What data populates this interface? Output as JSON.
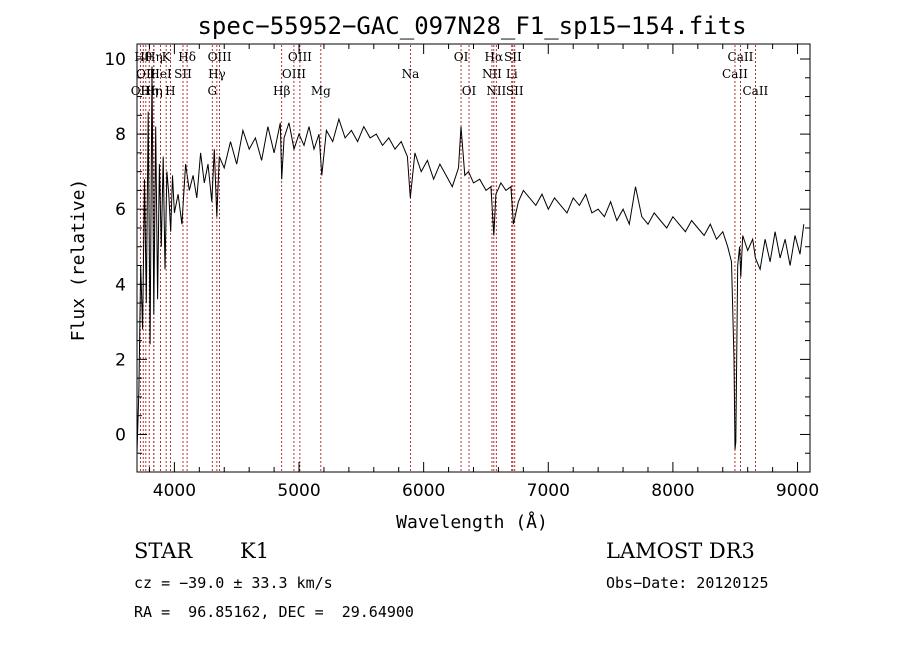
{
  "chart_data": {
    "type": "line",
    "title": "spec−55952−GAC_097N28_F1_sp15−154.fits",
    "xlabel": "Wavelength (Å)",
    "ylabel": "Flux (relative)",
    "xlim": [
      3700,
      9100
    ],
    "ylim": [
      -1.0,
      10.4
    ],
    "x_ticks": [
      {
        "v": 4000,
        "label": "4000"
      },
      {
        "v": 5000,
        "label": "5000"
      },
      {
        "v": 6000,
        "label": "6000"
      },
      {
        "v": 7000,
        "label": "7000"
      },
      {
        "v": 8000,
        "label": "8000"
      },
      {
        "v": 9000,
        "label": "9000"
      }
    ],
    "y_ticks": [
      {
        "v": 0,
        "label": "0"
      },
      {
        "v": 2,
        "label": "2"
      },
      {
        "v": 4,
        "label": "4"
      },
      {
        "v": 6,
        "label": "6"
      },
      {
        "v": 8,
        "label": "8"
      },
      {
        "v": 10,
        "label": "10"
      }
    ],
    "grid": false,
    "line_color": "#000000",
    "line_marker_color": "#a00000",
    "spectrum": {
      "x": [
        3700,
        3715,
        3730,
        3745,
        3760,
        3775,
        3790,
        3805,
        3820,
        3835,
        3850,
        3865,
        3880,
        3895,
        3910,
        3925,
        3940,
        3955,
        3970,
        3985,
        4000,
        4030,
        4060,
        4090,
        4120,
        4150,
        4180,
        4210,
        4240,
        4270,
        4300,
        4320,
        4340,
        4360,
        4400,
        4450,
        4500,
        4550,
        4600,
        4650,
        4700,
        4750,
        4800,
        4850,
        4861,
        4880,
        4920,
        4960,
        5000,
        5040,
        5080,
        5120,
        5160,
        5183,
        5220,
        5270,
        5320,
        5370,
        5420,
        5470,
        5520,
        5570,
        5620,
        5670,
        5720,
        5770,
        5820,
        5870,
        5893,
        5930,
        5980,
        6030,
        6080,
        6130,
        6180,
        6230,
        6280,
        6300,
        6330,
        6360,
        6400,
        6450,
        6500,
        6540,
        6563,
        6580,
        6620,
        6660,
        6700,
        6720,
        6760,
        6800,
        6850,
        6900,
        6950,
        7000,
        7050,
        7100,
        7150,
        7200,
        7250,
        7300,
        7350,
        7400,
        7450,
        7500,
        7550,
        7600,
        7650,
        7700,
        7750,
        7800,
        7850,
        7900,
        7950,
        8000,
        8050,
        8100,
        8150,
        8200,
        8250,
        8300,
        8350,
        8400,
        8440,
        8470,
        8490,
        8498,
        8505,
        8520,
        8535,
        8545,
        8560,
        8600,
        8640,
        8662,
        8700,
        8740,
        8780,
        8820,
        8860,
        8900,
        8940,
        8980,
        9020,
        9050
      ],
      "y": [
        -0.5,
        1.2,
        4.5,
        2.8,
        6.8,
        3.5,
        8.6,
        2.4,
        9.8,
        3.2,
        8.2,
        3.6,
        7.2,
        5.0,
        7.4,
        4.4,
        7.0,
        6.4,
        5.4,
        6.9,
        5.9,
        6.4,
        5.6,
        7.2,
        6.5,
        6.9,
        6.3,
        7.5,
        6.7,
        7.2,
        6.2,
        7.6,
        5.8,
        7.4,
        7.1,
        7.8,
        7.2,
        8.1,
        7.6,
        7.9,
        7.3,
        8.2,
        7.5,
        8.3,
        6.8,
        7.9,
        8.3,
        7.6,
        8.0,
        7.7,
        8.2,
        7.6,
        8.0,
        6.9,
        8.1,
        7.8,
        8.4,
        7.9,
        8.1,
        7.8,
        8.2,
        7.9,
        8.0,
        7.7,
        7.9,
        7.6,
        7.8,
        7.4,
        6.3,
        7.5,
        7.0,
        7.3,
        6.8,
        7.2,
        6.9,
        6.6,
        7.1,
        8.2,
        6.9,
        7.0,
        6.7,
        6.8,
        6.5,
        6.6,
        5.3,
        6.4,
        6.7,
        6.5,
        6.6,
        5.6,
        6.2,
        6.5,
        6.3,
        6.1,
        6.4,
        6.0,
        6.3,
        6.1,
        5.9,
        6.3,
        6.1,
        6.4,
        5.9,
        6.0,
        5.8,
        6.2,
        5.7,
        6.0,
        5.6,
        6.6,
        5.8,
        5.6,
        5.9,
        5.7,
        5.5,
        5.8,
        5.6,
        5.4,
        5.7,
        5.5,
        5.3,
        5.6,
        5.2,
        5.4,
        5.0,
        4.6,
        2.0,
        -0.4,
        -0.2,
        4.5,
        5.0,
        4.2,
        5.3,
        4.9,
        5.2,
        4.7,
        4.4,
        5.2,
        4.6,
        5.4,
        4.7,
        5.2,
        4.5,
        5.3,
        4.8,
        5.6
      ]
    },
    "line_markers": [
      {
        "x": 3727,
        "label": "OII",
        "row": 3
      },
      {
        "x": 3750,
        "label": "Hθ",
        "row": 1
      },
      {
        "x": 3771,
        "label": "OII",
        "row": 2
      },
      {
        "x": 3798,
        "label": "Hη",
        "row": 3
      },
      {
        "x": 3835,
        "label": "Hη",
        "row": 1
      },
      {
        "x": 3835,
        "label": "Hη",
        "row": 3
      },
      {
        "x": 3889,
        "label": "HeI",
        "row": 2
      },
      {
        "x": 3934,
        "label": "K",
        "row": 1
      },
      {
        "x": 3968,
        "label": "H",
        "row": 3
      },
      {
        "x": 4069,
        "label": "SII",
        "row": 2
      },
      {
        "x": 4102,
        "label": "Hδ",
        "row": 1
      },
      {
        "x": 4304,
        "label": "G",
        "row": 3
      },
      {
        "x": 4341,
        "label": "Hγ",
        "row": 2
      },
      {
        "x": 4363,
        "label": "OIII",
        "row": 1
      },
      {
        "x": 4861,
        "label": "Hβ",
        "row": 3
      },
      {
        "x": 4959,
        "label": "OIII",
        "row": 2
      },
      {
        "x": 5007,
        "label": "OIII",
        "row": 1
      },
      {
        "x": 5175,
        "label": "Mg",
        "row": 3
      },
      {
        "x": 5894,
        "label": "Na",
        "row": 2
      },
      {
        "x": 6300,
        "label": "OI",
        "row": 1
      },
      {
        "x": 6364,
        "label": "OI",
        "row": 3
      },
      {
        "x": 6548,
        "label": "NII",
        "row": 2
      },
      {
        "x": 6563,
        "label": "Hα",
        "row": 1
      },
      {
        "x": 6583,
        "label": "NII",
        "row": 3
      },
      {
        "x": 6707,
        "label": "Li",
        "row": 2
      },
      {
        "x": 6716,
        "label": "SII",
        "row": 1
      },
      {
        "x": 6731,
        "label": "SII",
        "row": 3
      },
      {
        "x": 8498,
        "label": "CaII",
        "row": 2
      },
      {
        "x": 8542,
        "label": "CaII",
        "row": 1
      },
      {
        "x": 8662,
        "label": "CaII",
        "row": 3
      }
    ]
  },
  "info": {
    "class_label": "STAR",
    "subclass_label": "K1",
    "survey_label": "LAMOST DR3",
    "redshift_text": "cz = −39.0 ± 33.3 km/s",
    "obs_date_text": "Obs−Date: 20120125",
    "coords_text": "RA =  96.85162, DEC =  29.64900"
  }
}
